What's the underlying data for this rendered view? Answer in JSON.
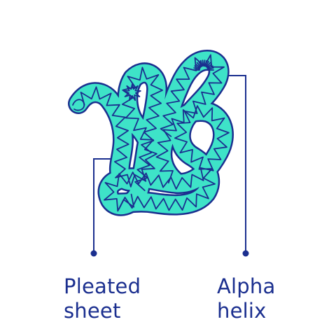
{
  "labels": {
    "pleated_sheet": {
      "line1": "Pleated",
      "line2": "sheet"
    },
    "alpha_helix": {
      "line1": "Alpha",
      "line2": "helix"
    }
  },
  "colors": {
    "stroke": "#1b2f8f",
    "fill": "#3ee3c8",
    "text": "#1b2f8f",
    "background": "#ffffff"
  },
  "icons": [
    "protein-chain-illustration"
  ]
}
